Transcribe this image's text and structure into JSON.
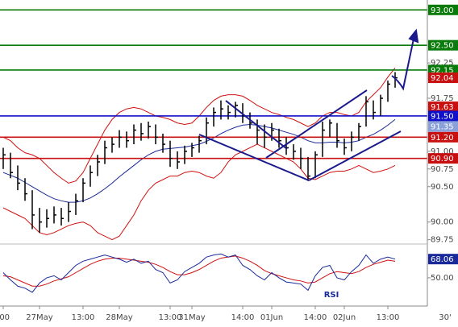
{
  "chart_data": [
    {
      "type": "ohlc",
      "categories": [
        ":00",
        null,
        null,
        null,
        null,
        "27May",
        null,
        null,
        null,
        null,
        null,
        "13:00",
        null,
        null,
        null,
        null,
        "28May",
        null,
        null,
        null,
        null,
        null,
        null,
        "13:00",
        null,
        null,
        "31May",
        null,
        null,
        null,
        null,
        null,
        null,
        "14:00",
        null,
        null,
        null,
        "01Jun",
        null,
        null,
        null,
        null,
        null,
        "14:00",
        null,
        null,
        null,
        "02Jun",
        null,
        null,
        null,
        null,
        null,
        "13:00",
        null
      ],
      "high": [
        91.05,
        90.98,
        90.8,
        90.62,
        90.45,
        90.2,
        90.18,
        90.22,
        90.2,
        90.28,
        90.4,
        90.62,
        90.8,
        90.95,
        91.15,
        91.2,
        91.3,
        91.28,
        91.38,
        91.4,
        91.42,
        91.38,
        91.25,
        91.15,
        91.0,
        91.08,
        91.12,
        91.22,
        91.48,
        91.62,
        91.72,
        91.65,
        91.7,
        91.68,
        91.55,
        91.45,
        91.38,
        91.4,
        91.32,
        91.2,
        91.1,
        91.05,
        90.92,
        91.0,
        91.42,
        91.45,
        91.4,
        91.18,
        91.28,
        91.4,
        91.78,
        91.72,
        91.8,
        92.0,
        92.12
      ],
      "low": [
        90.75,
        90.62,
        90.45,
        90.3,
        89.9,
        89.85,
        89.92,
        89.98,
        89.95,
        90.0,
        90.1,
        90.28,
        90.5,
        90.65,
        90.82,
        90.98,
        91.05,
        91.05,
        91.1,
        91.15,
        91.18,
        91.1,
        90.98,
        90.78,
        90.75,
        90.82,
        90.92,
        90.98,
        91.1,
        91.35,
        91.45,
        91.45,
        91.48,
        91.4,
        91.32,
        91.1,
        91.05,
        91.15,
        91.05,
        90.95,
        90.88,
        90.75,
        90.58,
        90.62,
        90.92,
        91.2,
        91.05,
        90.95,
        91.0,
        91.15,
        91.35,
        91.45,
        91.5,
        91.7,
        91.9
      ],
      "close": [
        90.95,
        90.7,
        90.55,
        90.4,
        90.1,
        90.0,
        90.05,
        90.1,
        90.05,
        90.15,
        90.3,
        90.55,
        90.7,
        90.85,
        91.05,
        91.1,
        91.2,
        91.15,
        91.3,
        91.25,
        91.35,
        91.2,
        91.1,
        90.9,
        90.85,
        91.0,
        91.05,
        91.15,
        91.4,
        91.55,
        91.6,
        91.55,
        91.65,
        91.5,
        91.4,
        91.3,
        91.2,
        91.3,
        91.15,
        91.05,
        91.0,
        90.9,
        90.65,
        90.95,
        91.3,
        91.4,
        91.15,
        91.05,
        91.2,
        91.35,
        91.7,
        91.55,
        91.75,
        91.95,
        92.04
      ],
      "overlays": [
        {
          "color": "#d01010",
          "values": [
            91.2,
            91.15,
            91.05,
            90.98,
            90.95,
            90.9,
            90.8,
            90.7,
            90.62,
            90.55,
            90.58,
            90.7,
            90.9,
            91.1,
            91.3,
            91.45,
            91.55,
            91.6,
            91.62,
            91.6,
            91.55,
            91.5,
            91.48,
            91.45,
            91.4,
            91.38,
            91.4,
            91.5,
            91.62,
            91.72,
            91.78,
            91.8,
            91.8,
            91.78,
            91.72,
            91.65,
            91.6,
            91.55,
            91.52,
            91.48,
            91.45,
            91.4,
            91.35,
            91.4,
            91.5,
            91.55,
            91.55,
            91.52,
            91.5,
            91.55,
            91.7,
            91.8,
            91.9,
            92.05,
            92.18
          ]
        },
        {
          "color": "#d01010",
          "values": [
            90.2,
            90.15,
            90.1,
            90.05,
            89.95,
            89.85,
            89.82,
            89.85,
            89.9,
            89.95,
            89.98,
            90.0,
            89.95,
            89.85,
            89.8,
            89.75,
            89.8,
            89.95,
            90.1,
            90.3,
            90.45,
            90.55,
            90.6,
            90.65,
            90.65,
            90.7,
            90.72,
            90.7,
            90.65,
            90.62,
            90.7,
            90.85,
            90.95,
            91.0,
            91.05,
            91.1,
            91.05,
            91.0,
            90.95,
            90.9,
            90.85,
            90.75,
            90.62,
            90.6,
            90.65,
            90.7,
            90.72,
            90.72,
            90.75,
            90.8,
            90.75,
            90.7,
            90.72,
            90.75,
            90.8
          ]
        },
        {
          "color": "#1a2a9a",
          "values": [
            90.7,
            90.66,
            90.62,
            90.56,
            90.5,
            90.44,
            90.38,
            90.33,
            90.3,
            90.28,
            90.28,
            90.3,
            90.34,
            90.4,
            90.47,
            90.55,
            90.64,
            90.72,
            90.8,
            90.88,
            90.95,
            91.0,
            91.03,
            91.04,
            91.05,
            91.06,
            91.08,
            91.1,
            91.14,
            91.19,
            91.25,
            91.3,
            91.34,
            91.37,
            91.38,
            91.37,
            91.35,
            91.33,
            91.3,
            91.27,
            91.24,
            91.2,
            91.15,
            91.12,
            91.12,
            91.13,
            91.13,
            91.12,
            91.13,
            91.15,
            91.2,
            91.24,
            91.3,
            91.37,
            91.45
          ]
        }
      ],
      "ylim": [
        89.7,
        93.14
      ],
      "yticks": [
        89.75,
        {
          "value": 90,
          "label": "90.00"
        },
        {
          "value": 90.5,
          "label": "90.50"
        },
        90.75,
        {
          "value": 91,
          "label": "91.00"
        },
        91.75,
        92.25
      ],
      "levels": [
        {
          "value": 93,
          "label": "93.00",
          "color": "#0a7a0a"
        },
        {
          "value": 92.5,
          "label": "92.50",
          "color": "#0a7a0a"
        },
        {
          "value": 92.15,
          "label": "92.15",
          "color": "#0a7a0a"
        },
        {
          "value": 91.5,
          "label": "91.50",
          "color": "#1010c8"
        },
        {
          "value": 91.2,
          "label": "91.20",
          "color": "#c81010"
        },
        {
          "value": 90.9,
          "label": "90.90",
          "color": "#c81010"
        }
      ],
      "markers": [
        {
          "value": 91.63,
          "color": "#c81010"
        },
        {
          "value": 91.35,
          "color": "#8aa0d8"
        }
      ],
      "timeframe": "30'"
    },
    {
      "type": "line",
      "label": "RSI",
      "series": [
        {
          "color": "#1a2a9a",
          "values": [
            55,
            48,
            42,
            40,
            36,
            45,
            50,
            52,
            48,
            55,
            62,
            66,
            68,
            70,
            72,
            70,
            68,
            65,
            68,
            64,
            66,
            58,
            55,
            45,
            48,
            56,
            60,
            64,
            70,
            72,
            73,
            70,
            72,
            62,
            58,
            52,
            48,
            55,
            50,
            46,
            45,
            44,
            38,
            52,
            60,
            62,
            50,
            48,
            56,
            62,
            72,
            64,
            68,
            70,
            68.06
          ]
        },
        {
          "color": "#d01010",
          "values": [
            52,
            51,
            48,
            45,
            42,
            42,
            44,
            47,
            49,
            51,
            55,
            59,
            63,
            66,
            68,
            69,
            69,
            68,
            67,
            66,
            65,
            63,
            60,
            56,
            53,
            53,
            55,
            58,
            62,
            66,
            69,
            70,
            71,
            69,
            66,
            62,
            57,
            54,
            52,
            50,
            48,
            47,
            45,
            46,
            50,
            54,
            56,
            55,
            54,
            56,
            60,
            63,
            65,
            67,
            66
          ]
        }
      ],
      "ylim": [
        29,
        81
      ],
      "yticks": [
        {
          "value": 50,
          "label": "50.00"
        }
      ]
    }
  ]
}
